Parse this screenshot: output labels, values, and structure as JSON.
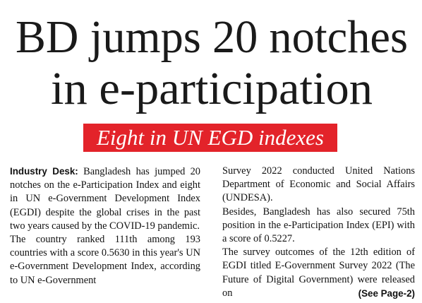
{
  "headline": {
    "lines": [
      "BD jumps 20 notches",
      "in e-participation"
    ]
  },
  "subheadline": "Eight in UN EGD indexes",
  "byline": "Industry Desk:",
  "columns": [
    [
      "Bangladesh has jumped 20 notches on the e-Participation Index and eight in UN e-Government Development Index (EGDI) despite the global crises in the past two years caused by the COVID-19 pandemic.",
      "The country ranked 111th among 193 countries with a score 0.5630 in this year's UN e-Government Development Index, according to UN e-Government"
    ],
    [
      "Survey 2022 conducted United Nations Department of Economic and Social Affairs (UNDESA).",
      "Besides, Bangladesh has also secured 75th position in the e-Participation Index (EPI) with a score of 0.5227.",
      "The survey outcomes of the 12th edition of EGDI titled E-Government Survey 2022 (The Future of Digital Government) were released on"
    ]
  ],
  "continuation": "(See Page-2)"
}
